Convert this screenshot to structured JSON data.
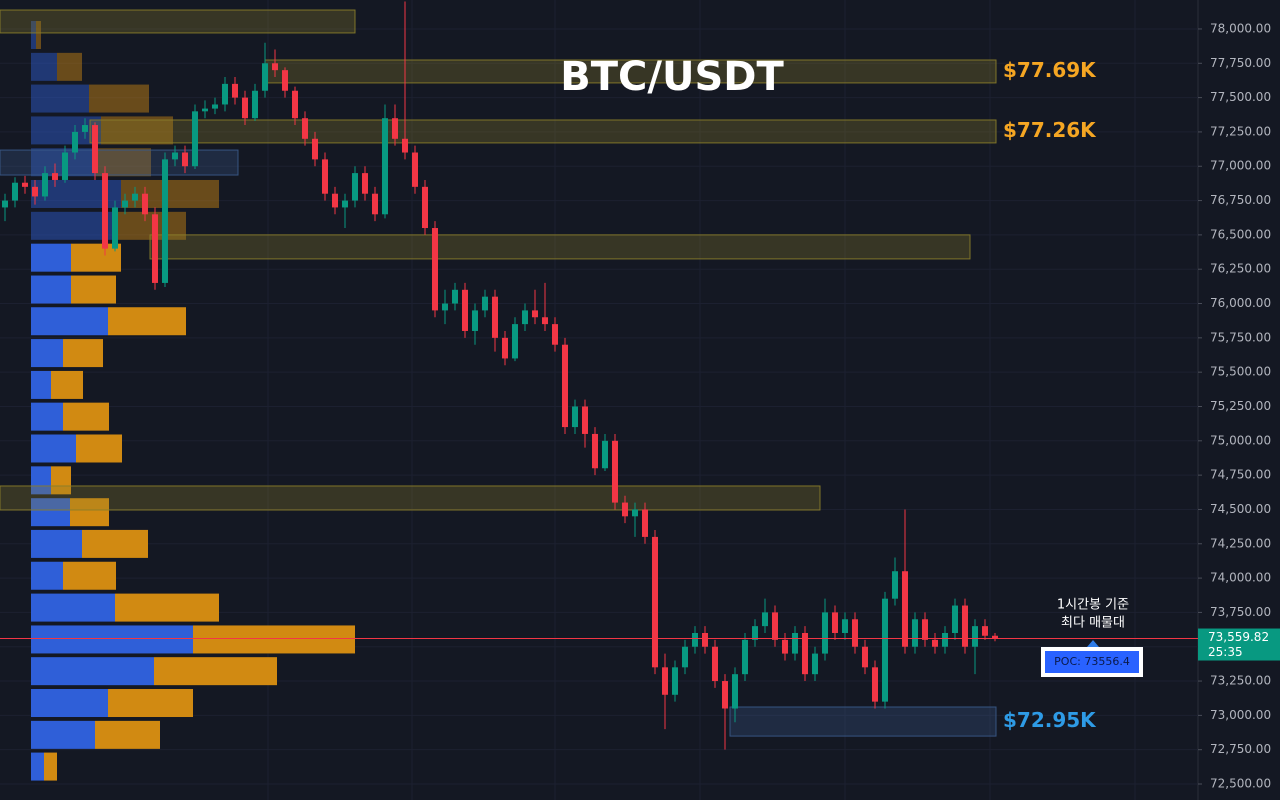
{
  "chart_data": {
    "type": "candlestick",
    "title": "BTC/USDT",
    "ylim": [
      72383.5,
      78211
    ],
    "grid": true,
    "yticks": [
      {
        "value": 78000,
        "label": "78,000.00"
      },
      {
        "value": 77750,
        "label": "77,750.00"
      },
      {
        "value": 77500,
        "label": "77,500.00"
      },
      {
        "value": 77250,
        "label": "77,250.00"
      },
      {
        "value": 77000,
        "label": "77,000.00"
      },
      {
        "value": 76750,
        "label": "76,750.00"
      },
      {
        "value": 76500,
        "label": "76,500.00"
      },
      {
        "value": 76250,
        "label": "76,250.00"
      },
      {
        "value": 76000,
        "label": "76,000.00"
      },
      {
        "value": 75750,
        "label": "75,750.00"
      },
      {
        "value": 75500,
        "label": "75,500.00"
      },
      {
        "value": 75250,
        "label": "75,250.00"
      },
      {
        "value": 75000,
        "label": "75,000.00"
      },
      {
        "value": 74750,
        "label": "74,750.00"
      },
      {
        "value": 74500,
        "label": "74,500.00"
      },
      {
        "value": 74250,
        "label": "74,250.00"
      },
      {
        "value": 74000,
        "label": "74,000.00"
      },
      {
        "value": 73750,
        "label": "73,750.00"
      },
      {
        "value": 73500,
        "label": "73,500.00"
      },
      {
        "value": 73250,
        "label": "73,250.00"
      },
      {
        "value": 73000,
        "label": "73,000.00"
      },
      {
        "value": 72750,
        "label": "72,750.00"
      },
      {
        "value": 72500,
        "label": "72,500.00"
      }
    ],
    "colors": {
      "up": "#089981",
      "down": "#f23645"
    },
    "ohlc": [
      [
        76700,
        76800,
        76600,
        76750
      ],
      [
        76750,
        76920,
        76700,
        76880
      ],
      [
        76880,
        76930,
        76800,
        76850
      ],
      [
        76850,
        76900,
        76720,
        76780
      ],
      [
        76780,
        77000,
        76750,
        76950
      ],
      [
        76950,
        77020,
        76850,
        76900
      ],
      [
        76900,
        77150,
        76880,
        77100
      ],
      [
        77100,
        77300,
        77050,
        77250
      ],
      [
        77250,
        77350,
        77200,
        77300
      ],
      [
        77300,
        77320,
        76900,
        76950
      ],
      [
        76950,
        77000,
        76350,
        76400
      ],
      [
        76400,
        76750,
        76380,
        76700
      ],
      [
        76700,
        76800,
        76650,
        76750
      ],
      [
        76750,
        76850,
        76700,
        76800
      ],
      [
        76800,
        76850,
        76600,
        76650
      ],
      [
        76650,
        76700,
        76100,
        76150
      ],
      [
        76150,
        77100,
        76120,
        77050
      ],
      [
        77050,
        77150,
        77000,
        77100
      ],
      [
        77100,
        77150,
        76950,
        77000
      ],
      [
        77000,
        77450,
        76980,
        77400
      ],
      [
        77400,
        77480,
        77350,
        77420
      ],
      [
        77420,
        77500,
        77380,
        77450
      ],
      [
        77450,
        77650,
        77400,
        77600
      ],
      [
        77600,
        77650,
        77450,
        77500
      ],
      [
        77500,
        77550,
        77300,
        77350
      ],
      [
        77350,
        77600,
        77330,
        77550
      ],
      [
        77550,
        77900,
        77500,
        77750
      ],
      [
        77750,
        77850,
        77650,
        77700
      ],
      [
        77700,
        77720,
        77500,
        77550
      ],
      [
        77550,
        77580,
        77300,
        77350
      ],
      [
        77350,
        77400,
        77150,
        77200
      ],
      [
        77200,
        77250,
        77000,
        77050
      ],
      [
        77050,
        77100,
        76750,
        76800
      ],
      [
        76800,
        76850,
        76650,
        76700
      ],
      [
        76700,
        76800,
        76550,
        76750
      ],
      [
        76750,
        77000,
        76700,
        76950
      ],
      [
        76950,
        77000,
        76750,
        76800
      ],
      [
        76800,
        76850,
        76600,
        76650
      ],
      [
        76650,
        77450,
        76620,
        77350
      ],
      [
        77350,
        77450,
        77150,
        77200
      ],
      [
        77200,
        78200,
        77050,
        77100
      ],
      [
        77100,
        77150,
        76800,
        76850
      ],
      [
        76850,
        76900,
        76500,
        76550
      ],
      [
        76550,
        76600,
        75900,
        75950
      ],
      [
        75950,
        76100,
        75850,
        76000
      ],
      [
        76000,
        76150,
        75950,
        76100
      ],
      [
        76100,
        76150,
        75750,
        75800
      ],
      [
        75800,
        76000,
        75700,
        75950
      ],
      [
        75950,
        76100,
        75900,
        76050
      ],
      [
        76050,
        76100,
        75650,
        75750
      ],
      [
        75750,
        75800,
        75550,
        75600
      ],
      [
        75600,
        75900,
        75580,
        75850
      ],
      [
        75850,
        76000,
        75800,
        75950
      ],
      [
        75950,
        76100,
        75850,
        75900
      ],
      [
        75900,
        76150,
        75800,
        75850
      ],
      [
        75850,
        75900,
        75650,
        75700
      ],
      [
        75700,
        75750,
        75050,
        75100
      ],
      [
        75100,
        75300,
        75050,
        75250
      ],
      [
        75250,
        75300,
        74950,
        75050
      ],
      [
        75050,
        75100,
        74750,
        74800
      ],
      [
        74800,
        75050,
        74780,
        75000
      ],
      [
        75000,
        75050,
        74500,
        74550
      ],
      [
        74550,
        74600,
        74400,
        74450
      ],
      [
        74450,
        74550,
        74300,
        74500
      ],
      [
        74500,
        74550,
        74250,
        74300
      ],
      [
        74300,
        74350,
        73300,
        73350
      ],
      [
        73350,
        73450,
        72900,
        73150
      ],
      [
        73150,
        73400,
        73100,
        73350
      ],
      [
        73350,
        73550,
        73300,
        73500
      ],
      [
        73500,
        73650,
        73450,
        73600
      ],
      [
        73600,
        73650,
        73450,
        73500
      ],
      [
        73500,
        73550,
        73200,
        73250
      ],
      [
        73250,
        73300,
        72750,
        73050
      ],
      [
        73050,
        73350,
        72950,
        73300
      ],
      [
        73300,
        73600,
        73250,
        73550
      ],
      [
        73550,
        73700,
        73500,
        73650
      ],
      [
        73650,
        73850,
        73600,
        73750
      ],
      [
        73750,
        73800,
        73500,
        73550
      ],
      [
        73550,
        73600,
        73400,
        73450
      ],
      [
        73450,
        73650,
        73400,
        73600
      ],
      [
        73600,
        73650,
        73250,
        73300
      ],
      [
        73300,
        73500,
        73250,
        73450
      ],
      [
        73450,
        73850,
        73400,
        73750
      ],
      [
        73750,
        73800,
        73550,
        73600
      ],
      [
        73600,
        73750,
        73550,
        73700
      ],
      [
        73700,
        73750,
        73450,
        73500
      ],
      [
        73500,
        73550,
        73300,
        73350
      ],
      [
        73350,
        73400,
        73050,
        73100
      ],
      [
        73100,
        73900,
        73050,
        73850
      ],
      [
        73850,
        74150,
        73800,
        74050
      ],
      [
        74050,
        74500,
        73450,
        73500
      ],
      [
        73500,
        73750,
        73450,
        73700
      ],
      [
        73700,
        73750,
        73500,
        73550
      ],
      [
        73550,
        73600,
        73450,
        73500
      ],
      [
        73500,
        73650,
        73450,
        73600
      ],
      [
        73600,
        73850,
        73550,
        73800
      ],
      [
        73800,
        73850,
        73450,
        73500
      ],
      [
        73500,
        73700,
        73300,
        73650
      ],
      [
        73650,
        73700,
        73550,
        73580
      ],
      [
        73580,
        73600,
        73540,
        73560
      ]
    ],
    "volume_profile": {
      "buy_color": "#2f5fd8",
      "sell_color": "#d18a12",
      "prices": [
        77956,
        77724,
        77493,
        77261,
        77029,
        76798,
        76566,
        76334,
        76102,
        75871,
        75639,
        75407,
        75176,
        74944,
        74712,
        74480,
        74249,
        74017,
        73785,
        73553,
        73322,
        73090,
        72858,
        72627
      ],
      "buy": [
        5,
        26,
        58,
        70,
        65,
        90,
        85,
        40,
        40,
        77,
        32,
        20,
        32,
        45,
        20,
        39,
        51,
        32,
        84,
        162,
        123,
        77,
        64,
        13
      ],
      "sell": [
        5,
        25,
        60,
        72,
        55,
        98,
        70,
        50,
        45,
        78,
        40,
        32,
        46,
        46,
        20,
        39,
        66,
        53,
        104,
        162,
        123,
        85,
        65,
        13
      ]
    },
    "zones": [
      {
        "top": 78138,
        "bottom": 77971,
        "color": "#8a7d2a"
      },
      {
        "top": 77774,
        "bottom": 77607,
        "color": "#8a7d2a",
        "label": "$77.69K",
        "label_color": "#f5a623"
      },
      {
        "top": 77337,
        "bottom": 77170,
        "color": "#8a7d2a",
        "label": "$77.26K",
        "label_color": "#f5a623"
      },
      {
        "top": 77118,
        "bottom": 76936,
        "color": "#3a5a8a"
      },
      {
        "top": 76500,
        "bottom": 76325,
        "color": "#8a7d2a"
      },
      {
        "top": 74671,
        "bottom": 74496,
        "color": "#8a7d2a"
      },
      {
        "top": 73061,
        "bottom": 72849,
        "color": "#3a5a8a",
        "label": "$72.95K",
        "label_color": "#2e9be6"
      }
    ],
    "current_price": {
      "value": 73559.82,
      "label": "73,559.82"
    },
    "countdown": "25:35",
    "poc": {
      "value": 73556.4,
      "label": "POC: 73556.4"
    },
    "annotation": [
      "1시간봉 기준",
      "최다 매물대"
    ]
  }
}
